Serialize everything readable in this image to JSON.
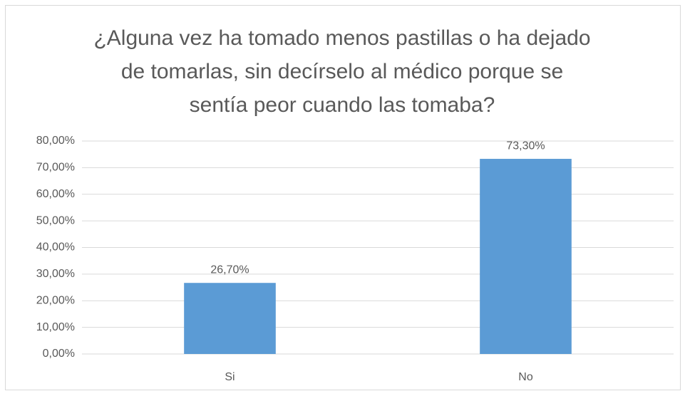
{
  "chart_data": {
    "type": "bar",
    "title": "¿Alguna vez ha tomado menos pastillas o ha dejado de tomarlas, sin decírselo al médico porque se sentía peor cuando las tomaba?",
    "categories": [
      "Si",
      "No"
    ],
    "values": [
      26.7,
      73.3
    ],
    "value_labels": [
      "26,70%",
      "73,30%"
    ],
    "color": "#5b9bd5",
    "ylim": [
      0,
      80
    ],
    "yticks": [
      {
        "value": 0,
        "label": "0,00%"
      },
      {
        "value": 10,
        "label": "10,00%"
      },
      {
        "value": 20,
        "label": "20,00%"
      },
      {
        "value": 30,
        "label": "30,00%"
      },
      {
        "value": 40,
        "label": "40,00%"
      },
      {
        "value": 50,
        "label": "50,00%"
      },
      {
        "value": 60,
        "label": "60,00%"
      },
      {
        "value": 70,
        "label": "70,00%"
      },
      {
        "value": 80,
        "label": "80,00%"
      }
    ],
    "grid": true
  }
}
